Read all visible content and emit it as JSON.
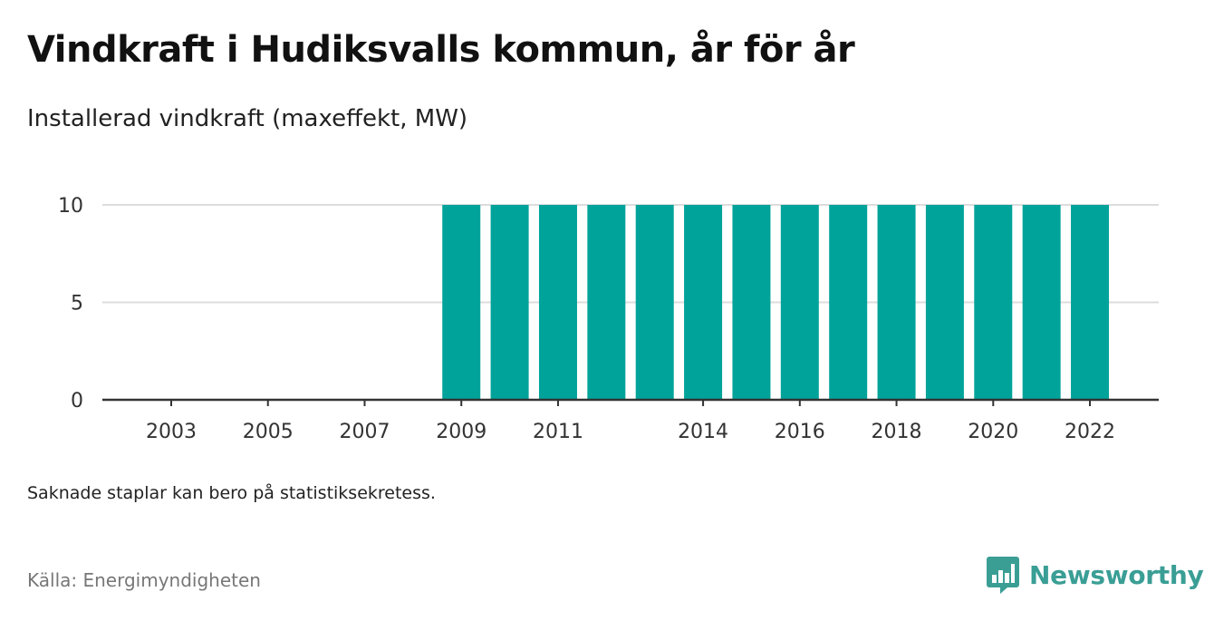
{
  "title": "Vindkraft i Hudiksvalls kommun, år för år",
  "subtitle": "Installerad vindkraft (maxeffekt, MW)",
  "note": "Saknade staplar kan bero på statistiksekretess.",
  "source": "Källa: Energimyndigheten",
  "brand": {
    "name": "Newsworthy",
    "logo_icon": "newsworthy-logo-icon",
    "color": "#3a9e95"
  },
  "chart_data": {
    "type": "bar",
    "title": "Vindkraft i Hudiksvalls kommun, år för år",
    "subtitle": "Installerad vindkraft (maxeffekt, MW)",
    "xlabel": "",
    "ylabel": "",
    "categories": [
      "2003",
      "2004",
      "2005",
      "2006",
      "2007",
      "2008",
      "2009",
      "2010",
      "2011",
      "2012",
      "2013",
      "2014",
      "2015",
      "2016",
      "2017",
      "2018",
      "2019",
      "2020",
      "2021",
      "2022"
    ],
    "values": [
      0,
      0,
      0,
      0,
      0,
      0,
      10,
      10,
      10,
      10,
      10,
      10,
      10,
      10,
      10,
      10,
      10,
      10,
      10,
      10
    ],
    "x_tick_labels": [
      "2003",
      "2005",
      "2007",
      "2009",
      "2011",
      "2014",
      "2016",
      "2018",
      "2020",
      "2022"
    ],
    "y_ticks": [
      0,
      5,
      10
    ],
    "ylim": [
      0,
      10
    ],
    "grid": true,
    "legend": "none",
    "bar_color": "#00a39a",
    "grid_color": "#dddddd",
    "axis_color": "#333333"
  }
}
